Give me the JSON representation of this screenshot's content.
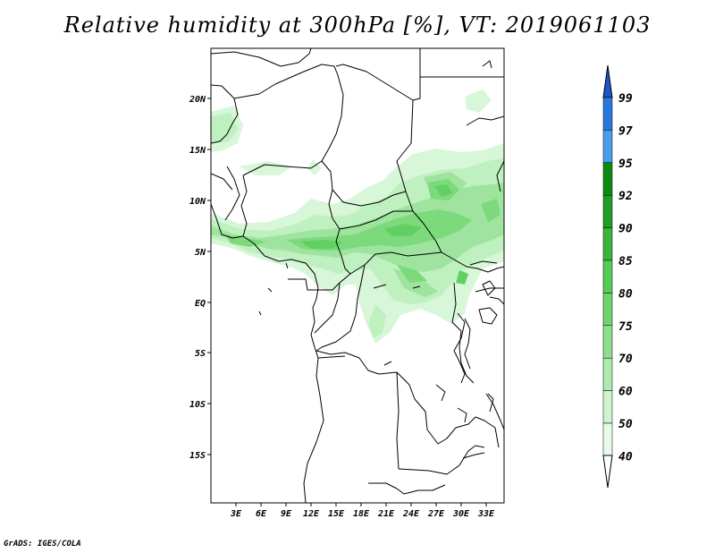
{
  "title": "Relative humidity at 300hPa [%], VT: 2019061103",
  "credit": "GrADS: IGES/COLA",
  "map": {
    "lon_labels": [
      "3E",
      "6E",
      "9E",
      "12E",
      "15E",
      "18E",
      "21E",
      "24E",
      "27E",
      "30E",
      "33E"
    ],
    "lat_labels": [
      "20N",
      "15N",
      "10N",
      "5N",
      "EQ",
      "5S",
      "10S",
      "15S"
    ],
    "lon_range": [
      0,
      35
    ],
    "lat_range": [
      -20,
      24
    ]
  },
  "colorbar": {
    "levels": [
      "99",
      "97",
      "95",
      "92",
      "90",
      "85",
      "80",
      "75",
      "70",
      "60",
      "50",
      "40"
    ],
    "colors": [
      "#1f55c8",
      "#2a78dc",
      "#4a9ee8",
      "#0e8a12",
      "#229c26",
      "#3cb43c",
      "#55cc55",
      "#6ed46e",
      "#8ede8e",
      "#aeeaae",
      "#cef4ce",
      "#e8fbe8"
    ]
  },
  "chart_data": {
    "type": "heatmap",
    "variable": "Relative humidity",
    "units": "%",
    "level": "300hPa",
    "valid_time": "2019061103",
    "contour_levels": [
      40,
      50,
      60,
      70,
      75,
      80,
      85,
      90,
      92,
      95,
      97,
      99
    ],
    "xlabels": [
      "3E",
      "6E",
      "9E",
      "12E",
      "15E",
      "18E",
      "21E",
      "24E",
      "27E",
      "30E",
      "33E"
    ],
    "ylabels": [
      "20N",
      "15N",
      "10N",
      "5N",
      "EQ",
      "5S",
      "10S",
      "15S"
    ],
    "xlim": [
      0,
      35
    ],
    "ylim": [
      -20,
      24
    ],
    "max_value_shown": 80
  }
}
